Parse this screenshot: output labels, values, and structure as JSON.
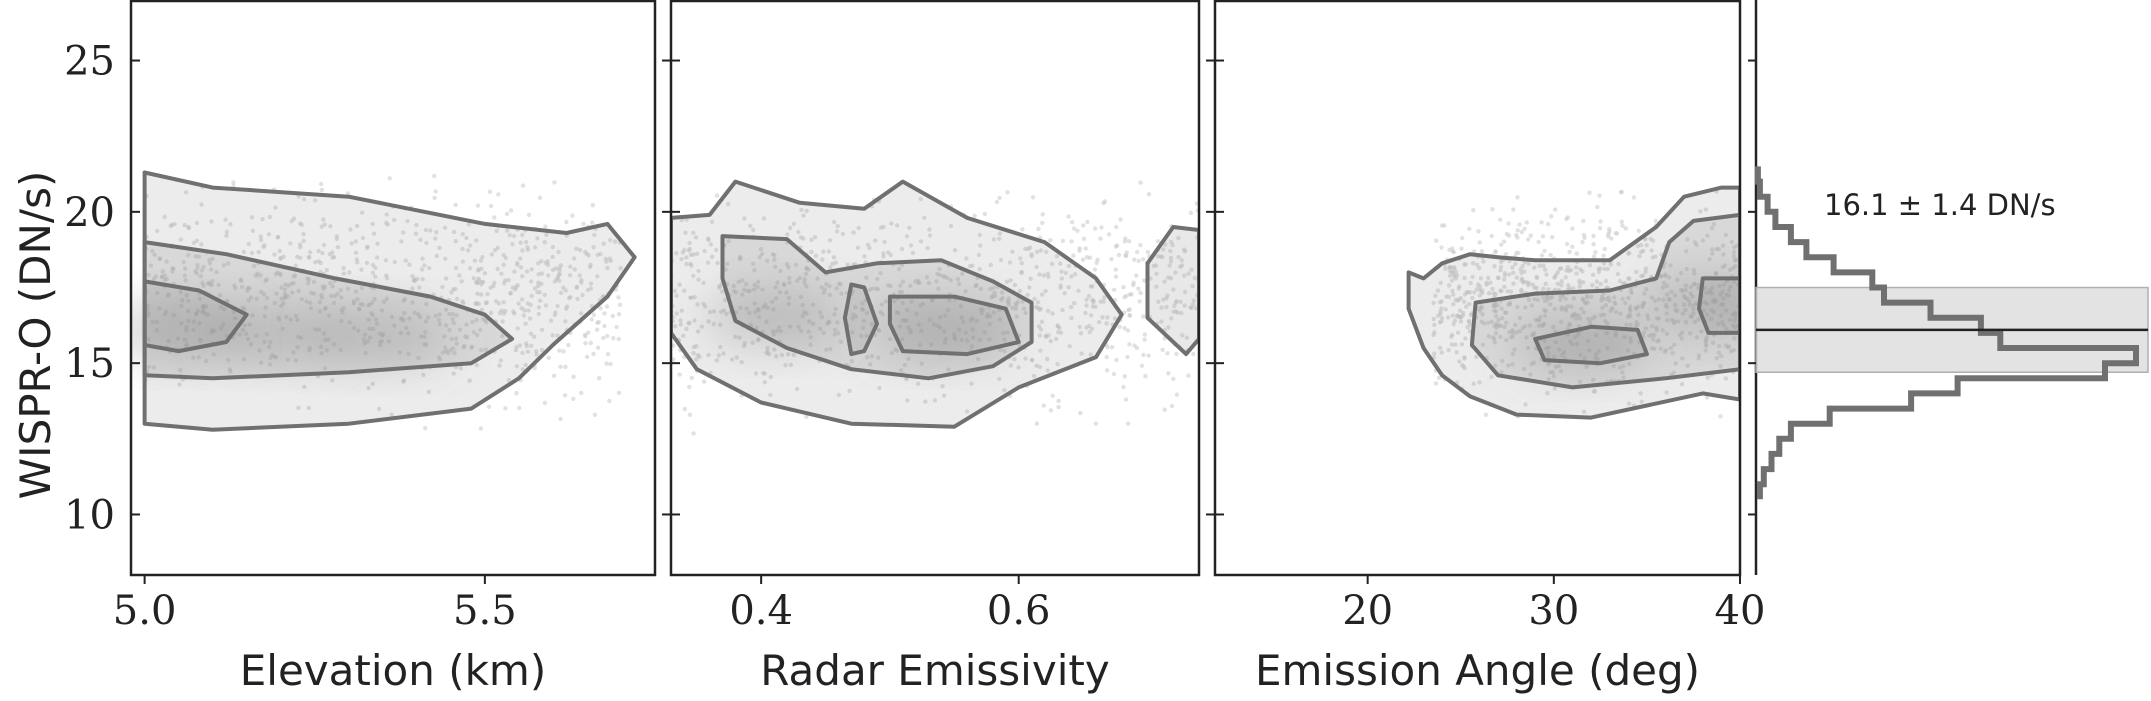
{
  "chart_data": {
    "type": "scatter",
    "ylabel": "WISPR-O (DN/s)",
    "ylim": [
      8,
      27
    ],
    "yticks": [
      10,
      15,
      20,
      25
    ],
    "colors": {
      "points": "#c8c8c8",
      "density": "#8a8a8a",
      "contour": "#707070",
      "band": "#d9d9d9",
      "frame": "#222222"
    },
    "panels": [
      {
        "xlabel": "Elevation (km)",
        "xlim": [
          4.98,
          5.75
        ],
        "xticks": [
          "5.0",
          "5.5"
        ],
        "xtick_values": [
          5.0,
          5.5
        ],
        "contours": [
          [
            [
              5.0,
              21.3
            ],
            [
              5.1,
              20.8
            ],
            [
              5.3,
              20.5
            ],
            [
              5.5,
              19.6
            ],
            [
              5.62,
              19.3
            ],
            [
              5.68,
              19.6
            ],
            [
              5.72,
              18.5
            ],
            [
              5.68,
              17.2
            ],
            [
              5.6,
              15.6
            ],
            [
              5.55,
              14.5
            ],
            [
              5.48,
              13.5
            ],
            [
              5.3,
              13.0
            ],
            [
              5.1,
              12.8
            ],
            [
              5.0,
              13.0
            ]
          ],
          [
            [
              5.0,
              19.0
            ],
            [
              5.12,
              18.6
            ],
            [
              5.28,
              17.8
            ],
            [
              5.42,
              17.2
            ],
            [
              5.5,
              16.6
            ],
            [
              5.54,
              15.8
            ],
            [
              5.48,
              15.0
            ],
            [
              5.3,
              14.7
            ],
            [
              5.1,
              14.5
            ],
            [
              5.0,
              14.6
            ]
          ],
          [
            [
              5.0,
              17.7
            ],
            [
              5.08,
              17.4
            ],
            [
              5.15,
              16.6
            ],
            [
              5.12,
              15.7
            ],
            [
              5.05,
              15.4
            ],
            [
              5.0,
              15.6
            ]
          ]
        ],
        "density_centers": [
          [
            5.05,
            16.1
          ],
          [
            5.2,
            16.0
          ],
          [
            5.35,
            15.9
          ]
        ],
        "point_spread": [
          [
            5.0,
            5.7
          ],
          [
            12.8,
            21.3
          ]
        ]
      },
      {
        "xlabel": "Radar Emissivity",
        "xlim": [
          0.33,
          0.74
        ],
        "xticks": [
          "0.4",
          "0.6"
        ],
        "xtick_values": [
          0.4,
          0.6
        ],
        "contours": [
          [
            [
              0.33,
              19.8
            ],
            [
              0.36,
              19.9
            ],
            [
              0.38,
              21.0
            ],
            [
              0.43,
              20.3
            ],
            [
              0.48,
              20.1
            ],
            [
              0.51,
              21.0
            ],
            [
              0.56,
              19.8
            ],
            [
              0.62,
              19.0
            ],
            [
              0.66,
              17.8
            ],
            [
              0.68,
              16.6
            ],
            [
              0.66,
              15.2
            ],
            [
              0.6,
              14.2
            ],
            [
              0.55,
              12.9
            ],
            [
              0.47,
              13.0
            ],
            [
              0.4,
              13.7
            ],
            [
              0.35,
              14.8
            ],
            [
              0.33,
              16.0
            ]
          ],
          [
            [
              0.37,
              19.2
            ],
            [
              0.42,
              19.1
            ],
            [
              0.45,
              18.0
            ],
            [
              0.49,
              18.3
            ],
            [
              0.54,
              18.4
            ],
            [
              0.58,
              17.7
            ],
            [
              0.61,
              17.0
            ],
            [
              0.61,
              15.7
            ],
            [
              0.58,
              14.9
            ],
            [
              0.53,
              14.5
            ],
            [
              0.47,
              14.8
            ],
            [
              0.42,
              15.5
            ],
            [
              0.38,
              16.4
            ],
            [
              0.37,
              17.8
            ]
          ],
          [
            [
              0.47,
              17.6
            ],
            [
              0.48,
              17.5
            ],
            [
              0.49,
              16.3
            ],
            [
              0.48,
              15.4
            ],
            [
              0.47,
              15.3
            ],
            [
              0.465,
              16.5
            ]
          ],
          [
            [
              0.5,
              17.2
            ],
            [
              0.55,
              17.2
            ],
            [
              0.59,
              16.8
            ],
            [
              0.6,
              15.7
            ],
            [
              0.56,
              15.3
            ],
            [
              0.51,
              15.4
            ],
            [
              0.5,
              16.3
            ]
          ],
          [
            [
              0.7,
              18.3
            ],
            [
              0.72,
              19.5
            ],
            [
              0.74,
              19.4
            ],
            [
              0.74,
              15.8
            ],
            [
              0.73,
              15.3
            ],
            [
              0.7,
              16.5
            ]
          ]
        ],
        "density_centers": [
          [
            0.41,
            16.5
          ],
          [
            0.54,
            16.1
          ]
        ],
        "point_spread": [
          [
            0.33,
            0.74
          ],
          [
            12.6,
            21.0
          ]
        ]
      },
      {
        "xlabel": "Emission Angle (deg)",
        "xlim": [
          11.8,
          40
        ],
        "xticks": [
          "20",
          "30",
          "40"
        ],
        "xtick_values": [
          20,
          30,
          40
        ],
        "contours": [
          [
            [
              22.2,
              18.0
            ],
            [
              23.0,
              17.8
            ],
            [
              24.0,
              18.3
            ],
            [
              25.5,
              18.6
            ],
            [
              27.0,
              18.5
            ],
            [
              29.0,
              18.4
            ],
            [
              33.0,
              18.4
            ],
            [
              35.5,
              19.5
            ],
            [
              37.0,
              20.5
            ],
            [
              39.0,
              20.8
            ],
            [
              40.0,
              20.8
            ],
            [
              40.0,
              13.8
            ],
            [
              38.0,
              14.0
            ],
            [
              35.0,
              13.6
            ],
            [
              32.0,
              13.2
            ],
            [
              28.0,
              13.3
            ],
            [
              25.5,
              13.9
            ],
            [
              24.0,
              14.6
            ],
            [
              23.0,
              15.5
            ],
            [
              22.2,
              16.8
            ]
          ],
          [
            [
              25.8,
              17.0
            ],
            [
              29.0,
              17.3
            ],
            [
              33.0,
              17.4
            ],
            [
              35.5,
              17.8
            ],
            [
              36.2,
              19.0
            ],
            [
              37.5,
              19.7
            ],
            [
              40.0,
              19.9
            ],
            [
              40.0,
              14.8
            ],
            [
              36.0,
              14.5
            ],
            [
              31.0,
              14.2
            ],
            [
              27.0,
              14.6
            ],
            [
              25.6,
              15.6
            ]
          ],
          [
            [
              29.0,
              15.8
            ],
            [
              32.0,
              16.2
            ],
            [
              34.5,
              16.1
            ],
            [
              35.0,
              15.3
            ],
            [
              32.5,
              15.0
            ],
            [
              29.5,
              15.1
            ]
          ],
          [
            [
              38.0,
              17.8
            ],
            [
              40.0,
              17.8
            ],
            [
              40.0,
              16.0
            ],
            [
              38.3,
              16.0
            ],
            [
              37.8,
              16.8
            ]
          ]
        ],
        "density_centers": [
          [
            31.5,
            15.7
          ],
          [
            38.5,
            16.9
          ]
        ],
        "point_spread": [
          [
            23.5,
            40.0
          ],
          [
            12.9,
            20.8
          ]
        ]
      }
    ],
    "histogram": {
      "annotation": "16.1 ± 1.4 DN/s",
      "mean": 16.1,
      "sigma": 1.4,
      "bins_low": 10.5,
      "bin_width": 0.5,
      "counts": [
        0.01,
        0.02,
        0.04,
        0.06,
        0.09,
        0.19,
        0.4,
        0.52,
        0.9,
        0.98,
        0.63,
        0.58,
        0.45,
        0.33,
        0.3,
        0.2,
        0.13,
        0.09,
        0.05,
        0.03,
        0.01,
        0.005
      ]
    }
  }
}
